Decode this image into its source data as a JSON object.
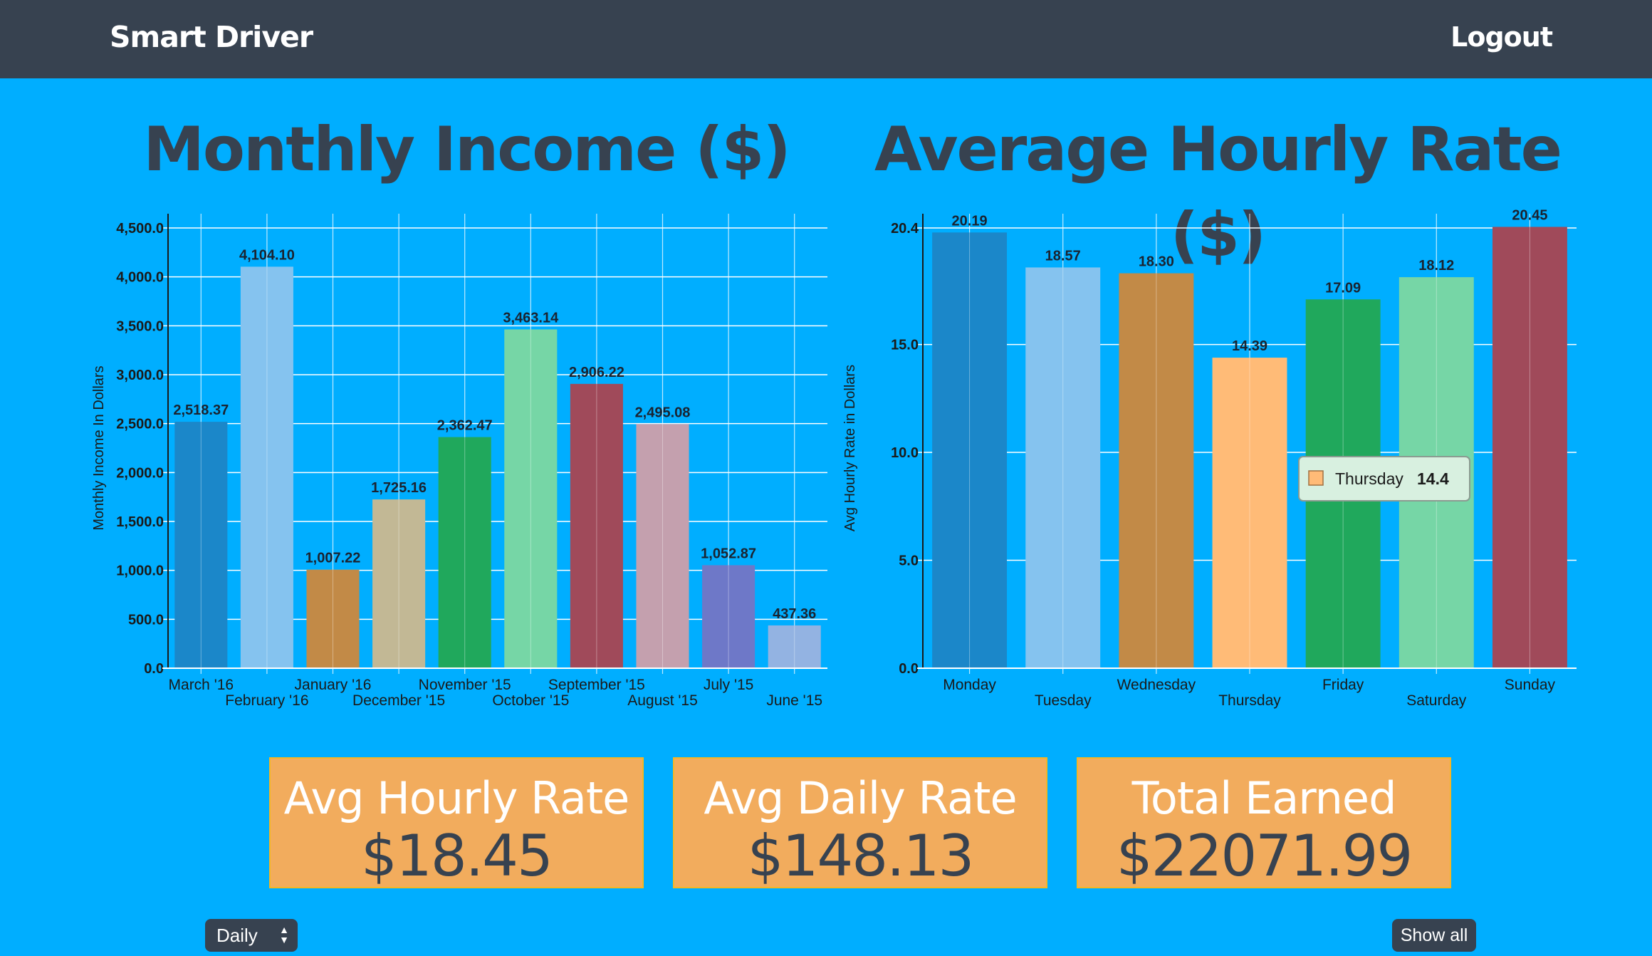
{
  "app": {
    "brand": "Smart Driver",
    "logout_label": "Logout"
  },
  "charts": {
    "monthly_title": "Monthly Income ($)",
    "hourly_title": "Average Hourly Rate ($)"
  },
  "chart_data": [
    {
      "type": "bar",
      "title": "Monthly Income ($)",
      "ylabel": "Monthly Income In Dollars",
      "xlabel": "",
      "ylim": [
        0,
        4500
      ],
      "yticks": [
        "0.0",
        "500.0",
        "1,000.0",
        "1,500.0",
        "2,000.0",
        "2,500.0",
        "3,000.0",
        "3,500.0",
        "4,000.0",
        "4,500.0"
      ],
      "ytick_values": [
        0,
        500,
        1000,
        1500,
        2000,
        2500,
        3000,
        3500,
        4000,
        4500
      ],
      "grid": true,
      "categories": [
        "March '16",
        "February '16",
        "January '16",
        "December '15",
        "November '15",
        "October '15",
        "September '15",
        "August '15",
        "July '15",
        "June '15"
      ],
      "values": [
        2518.37,
        4104.1,
        1007.22,
        1725.16,
        2362.47,
        3463.14,
        2906.22,
        2495.08,
        1052.87,
        437.36
      ],
      "value_labels": [
        "2,518.37",
        "4,104.10",
        "1,007.22",
        "1,725.16",
        "2,362.47",
        "3,463.14",
        "2,906.22",
        "2,495.08",
        "1,052.87",
        "437.36"
      ],
      "colors": [
        "#1b87c9",
        "#85c3ef",
        "#c28a47",
        "#c2b895",
        "#20a85c",
        "#76d6a6",
        "#a04a5a",
        "#c4a0ae",
        "#6e78c8",
        "#93b3e2"
      ]
    },
    {
      "type": "bar",
      "title": "Average Hourly Rate ($)",
      "ylabel": "Avg Hourly Rate in Dollars",
      "xlabel": "",
      "ylim": [
        0,
        20.4
      ],
      "yticks": [
        "0.0",
        "5.0",
        "10.0",
        "15.0",
        "20.4"
      ],
      "ytick_values": [
        0,
        5,
        10,
        15,
        20.4
      ],
      "grid": true,
      "categories": [
        "Monday",
        "Tuesday",
        "Wednesday",
        "Thursday",
        "Friday",
        "Saturday",
        "Sunday"
      ],
      "values": [
        20.19,
        18.57,
        18.3,
        14.39,
        17.09,
        18.12,
        20.45
      ],
      "value_labels": [
        "20.19",
        "18.57",
        "18.30",
        "14.39",
        "17.09",
        "18.12",
        "20.45"
      ],
      "colors": [
        "#1b87c9",
        "#85c3ef",
        "#c28a47",
        "#ffbb77",
        "#20a85c",
        "#76d6a6",
        "#a04a5a"
      ],
      "tooltip": {
        "label": "Thursday",
        "value": "14.4",
        "color": "#ffbb77"
      }
    }
  ],
  "stats": {
    "hourly_label": "Avg Hourly Rate",
    "hourly_value": "$18.45",
    "daily_label": "Avg Daily Rate",
    "daily_value": "$148.13",
    "total_label": "Total Earned",
    "total_value": "$22071.99"
  },
  "controls": {
    "period_value": "Daily",
    "show_all_label": "Show all"
  }
}
